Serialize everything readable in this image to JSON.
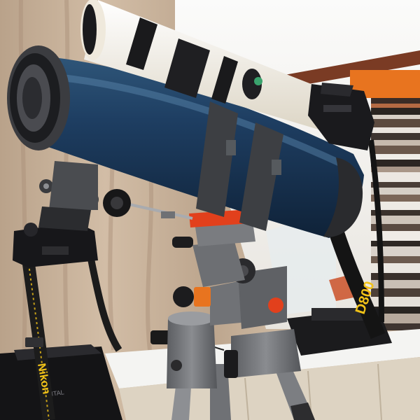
{
  "photo": {
    "subject": "Telescope on equatorial mount with camera",
    "strap_text_left": "Nikon",
    "strap_text_right": "D800",
    "bag_text": "Nikon",
    "small_text": "DIGITAL",
    "colors": {
      "tube": "#1d3a5c",
      "tube_highlight": "#3f6a92",
      "lens_white": "#efe9dc",
      "mount_gray": "#6d6f73",
      "accent_red": "#e2401c",
      "accent_orange": "#e8741f",
      "curtain": "#c9b29a",
      "wall": "#f2f0ec"
    }
  }
}
